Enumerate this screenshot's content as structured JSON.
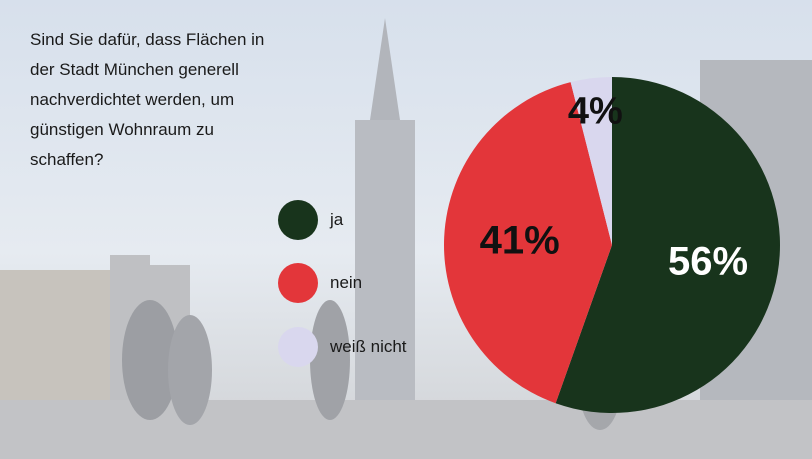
{
  "question": "Sind Sie dafür, dass Flächen in\nder Stadt München generell\nnachverdichtet werden, um\ngünstigen Wohnraum zu\nschaffen?",
  "chart_data": {
    "type": "pie",
    "title": "",
    "legend_position": "left",
    "slices": [
      {
        "label": "ja",
        "value": 56,
        "display": "56%",
        "color": "#18341c",
        "label_color": "#ffffff"
      },
      {
        "label": "nein",
        "value": 41,
        "display": "41%",
        "color": "#e3363a",
        "label_color": "#111111"
      },
      {
        "label": "weiß nicht",
        "value": 4,
        "display": "4%",
        "color": "#d9d7ee",
        "label_color": "#111111"
      }
    ]
  },
  "colors": {
    "background_sky": "#dfe6ef",
    "background_ground": "#c9c9cb",
    "background_building": "#b4b7bd"
  }
}
